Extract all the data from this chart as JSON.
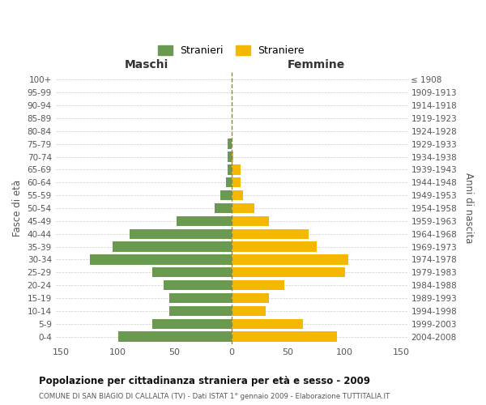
{
  "age_groups": [
    "100+",
    "95-99",
    "90-94",
    "85-89",
    "80-84",
    "75-79",
    "70-74",
    "65-69",
    "60-64",
    "55-59",
    "50-54",
    "45-49",
    "40-44",
    "35-39",
    "30-34",
    "25-29",
    "20-24",
    "15-19",
    "10-14",
    "5-9",
    "0-4"
  ],
  "birth_years": [
    "≤ 1908",
    "1909-1913",
    "1914-1918",
    "1919-1923",
    "1924-1928",
    "1929-1933",
    "1934-1938",
    "1939-1943",
    "1944-1948",
    "1949-1953",
    "1954-1958",
    "1959-1963",
    "1964-1968",
    "1969-1973",
    "1974-1978",
    "1979-1983",
    "1984-1988",
    "1989-1993",
    "1994-1998",
    "1999-2003",
    "2004-2008"
  ],
  "males": [
    0,
    0,
    0,
    0,
    0,
    3,
    3,
    3,
    5,
    10,
    15,
    48,
    90,
    105,
    125,
    70,
    60,
    55,
    55,
    70,
    100
  ],
  "females": [
    0,
    0,
    0,
    0,
    0,
    0,
    2,
    8,
    8,
    10,
    20,
    33,
    68,
    75,
    103,
    100,
    47,
    33,
    30,
    63,
    93
  ],
  "male_color": "#6a9a50",
  "female_color": "#f5b800",
  "male_label": "Stranieri",
  "female_label": "Straniere",
  "title": "Popolazione per cittadinanza straniera per età e sesso - 2009",
  "subtitle": "COMUNE DI SAN BIAGIO DI CALLALTA (TV) - Dati ISTAT 1° gennaio 2009 - Elaborazione TUTTITALIA.IT",
  "xlabel_left": "Maschi",
  "xlabel_right": "Femmine",
  "ylabel_left": "Fasce di età",
  "ylabel_right": "Anni di nascita",
  "xlim": 155,
  "background_color": "#ffffff",
  "grid_color": "#cccccc"
}
